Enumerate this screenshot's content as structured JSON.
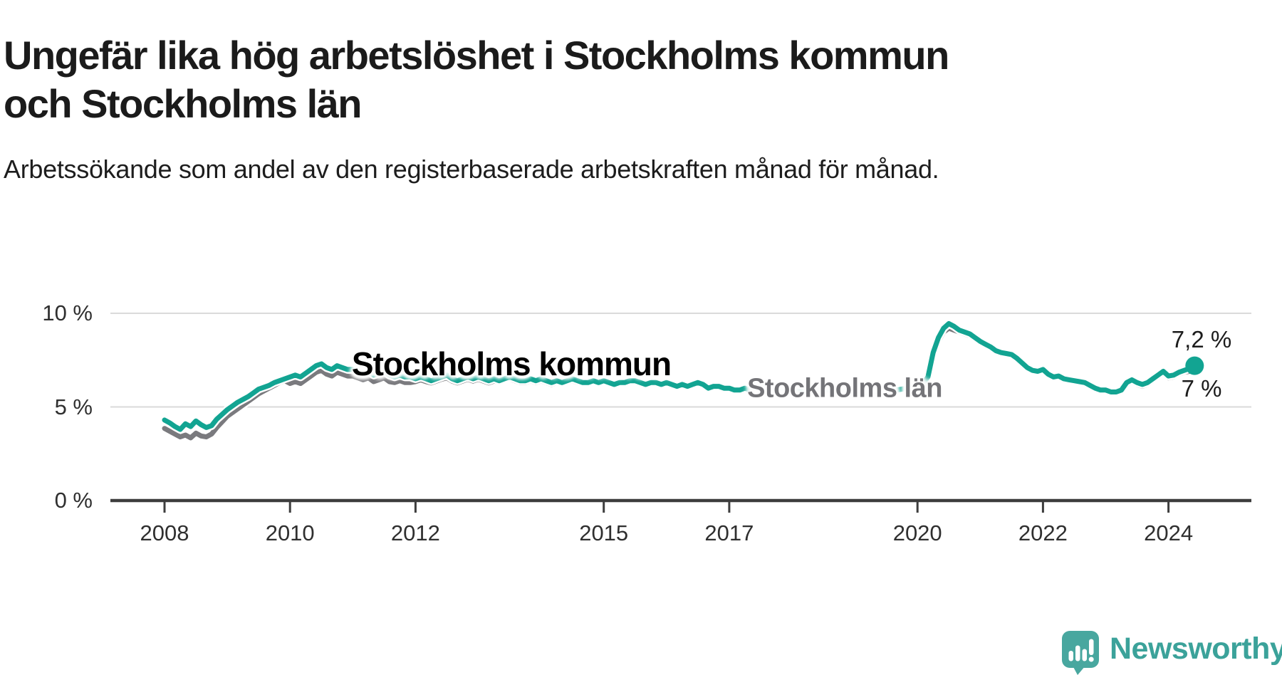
{
  "header": {
    "title_line1": "Ungefär lika hög arbetslöshet i Stockholms kommun",
    "title_line2": "och Stockholms län",
    "subtitle": "Arbetssökande som andel av den registerbaserade arbetskraften månad för månad."
  },
  "chart_data": {
    "type": "line",
    "title": "Ungefär lika hög arbetslöshet i Stockholms kommun och Stockholms län",
    "subtitle": "Arbetssökande som andel av den registerbaserade arbetskraften månad för månad.",
    "unit": "%",
    "frequency": "monthly",
    "x_start": "2008-01",
    "x_end": "2024-06",
    "ylim": [
      0,
      10.5
    ],
    "grid": "horizontal",
    "legend_position": "inline-labels",
    "y_ticks": [
      {
        "value": 10,
        "label": "10 %"
      },
      {
        "value": 5,
        "label": "5 %"
      },
      {
        "value": 0,
        "label": "0 %"
      }
    ],
    "x_ticks": [
      {
        "year": 2008,
        "label": "2008"
      },
      {
        "year": 2010,
        "label": "2010"
      },
      {
        "year": 2012,
        "label": "2012"
      },
      {
        "year": 2015,
        "label": "2015"
      },
      {
        "year": 2017,
        "label": "2017"
      },
      {
        "year": 2020,
        "label": "2020"
      },
      {
        "year": 2022,
        "label": "2022"
      },
      {
        "year": 2024,
        "label": "2024"
      }
    ],
    "series": [
      {
        "name": "Stockholms kommun",
        "color": "#12a492",
        "end_label": "7,2 %",
        "end_value": 7.2,
        "values": [
          4.3,
          4.15,
          3.95,
          3.8,
          4.1,
          3.95,
          4.25,
          4.05,
          3.9,
          4.0,
          4.35,
          4.6,
          4.85,
          5.05,
          5.25,
          5.4,
          5.55,
          5.75,
          5.95,
          6.05,
          6.15,
          6.3,
          6.4,
          6.5,
          6.6,
          6.7,
          6.6,
          6.8,
          7.0,
          7.2,
          7.3,
          7.1,
          7.0,
          7.2,
          7.1,
          7.0,
          7.0,
          6.9,
          6.8,
          6.9,
          6.7,
          6.8,
          6.9,
          6.7,
          6.6,
          6.7,
          6.6,
          6.6,
          6.5,
          6.6,
          6.5,
          6.4,
          6.5,
          6.6,
          6.7,
          6.5,
          6.4,
          6.5,
          6.6,
          6.5,
          6.6,
          6.5,
          6.4,
          6.5,
          6.4,
          6.5,
          6.6,
          6.5,
          6.4,
          6.4,
          6.5,
          6.4,
          6.5,
          6.4,
          6.3,
          6.4,
          6.3,
          6.4,
          6.5,
          6.4,
          6.3,
          6.3,
          6.4,
          6.3,
          6.4,
          6.3,
          6.2,
          6.3,
          6.3,
          6.4,
          6.4,
          6.3,
          6.2,
          6.3,
          6.3,
          6.2,
          6.3,
          6.2,
          6.1,
          6.2,
          6.1,
          6.2,
          6.3,
          6.2,
          6.0,
          6.1,
          6.1,
          6.0,
          6.0,
          5.9,
          5.9,
          6.0,
          5.9,
          6.0,
          6.1,
          6.0,
          5.9,
          5.9,
          6.0,
          5.9,
          5.9,
          5.85,
          5.8,
          5.85,
          5.8,
          5.9,
          5.95,
          5.9,
          5.8,
          5.8,
          5.85,
          5.8,
          5.85,
          5.8,
          5.75,
          5.8,
          5.8,
          5.9,
          6.0,
          5.95,
          5.9,
          5.95,
          6.0,
          6.05,
          6.1,
          6.2,
          6.6,
          7.9,
          8.7,
          9.2,
          9.45,
          9.3,
          9.1,
          9.0,
          8.9,
          8.7,
          8.5,
          8.35,
          8.2,
          8.0,
          7.9,
          7.85,
          7.8,
          7.6,
          7.35,
          7.1,
          6.95,
          6.9,
          7.0,
          6.75,
          6.6,
          6.65,
          6.5,
          6.45,
          6.4,
          6.35,
          6.3,
          6.15,
          6.0,
          5.9,
          5.9,
          5.8,
          5.8,
          5.9,
          6.3,
          6.45,
          6.3,
          6.2,
          6.3,
          6.5,
          6.7,
          6.9,
          6.65,
          6.7,
          6.85,
          6.95,
          7.05,
          7.2
        ]
      },
      {
        "name": "Stockholms län",
        "color": "#7a7a7e",
        "end_label": "7 %",
        "end_value": 7.0,
        "values": [
          3.85,
          3.7,
          3.55,
          3.4,
          3.5,
          3.35,
          3.6,
          3.45,
          3.4,
          3.55,
          3.9,
          4.2,
          4.5,
          4.7,
          4.9,
          5.1,
          5.3,
          5.5,
          5.7,
          5.85,
          6.0,
          6.15,
          6.3,
          6.4,
          6.25,
          6.35,
          6.25,
          6.45,
          6.65,
          6.85,
          6.95,
          6.75,
          6.65,
          6.85,
          6.75,
          6.65,
          6.65,
          6.55,
          6.45,
          6.55,
          6.35,
          6.45,
          6.55,
          6.35,
          6.3,
          6.4,
          6.3,
          6.3,
          6.35,
          6.45,
          6.35,
          6.28,
          6.38,
          6.48,
          6.55,
          6.38,
          6.28,
          6.38,
          6.48,
          6.38,
          6.48,
          6.38,
          6.28,
          6.38,
          6.33,
          6.43,
          6.5,
          6.4,
          6.3,
          6.3,
          6.4,
          6.3,
          6.4,
          6.3,
          6.2,
          6.3,
          6.22,
          6.32,
          6.4,
          6.3,
          6.22,
          6.22,
          6.32,
          6.22,
          6.32,
          6.22,
          6.12,
          6.22,
          6.22,
          6.32,
          6.32,
          6.22,
          6.12,
          6.22,
          6.22,
          6.12,
          6.22,
          6.12,
          6.02,
          6.12,
          6.02,
          6.12,
          6.22,
          6.12,
          5.92,
          6.02,
          6.02,
          5.92,
          5.92,
          5.82,
          5.82,
          5.92,
          5.82,
          5.92,
          6.02,
          5.92,
          5.82,
          5.82,
          5.92,
          5.82,
          5.82,
          5.78,
          5.72,
          5.78,
          5.72,
          5.82,
          5.88,
          5.82,
          5.72,
          5.72,
          5.78,
          5.72,
          5.78,
          5.72,
          5.68,
          5.72,
          5.72,
          5.82,
          5.92,
          5.88,
          5.82,
          5.88,
          5.92,
          5.98,
          6.02,
          6.12,
          6.5,
          7.7,
          8.5,
          9.0,
          9.2,
          9.1,
          9.0,
          8.9,
          8.8,
          8.65,
          8.55,
          8.4,
          8.25,
          8.05,
          7.95,
          7.9,
          7.85,
          7.65,
          7.4,
          7.15,
          7.0,
          6.95,
          7.05,
          6.8,
          6.65,
          6.7,
          6.55,
          6.5,
          6.45,
          6.4,
          6.33,
          6.18,
          6.05,
          5.92,
          5.85,
          5.75,
          5.75,
          5.85,
          6.2,
          6.35,
          6.2,
          6.1,
          6.2,
          6.4,
          6.6,
          6.8,
          6.55,
          6.6,
          6.75,
          6.85,
          6.9,
          7.0
        ]
      }
    ]
  },
  "branding": {
    "logo_text": "Newsworthy",
    "logo_icon": "bar-chart-speech-bubble-icon",
    "logo_color": "#48a79f",
    "logo_text_color": "#3ba29a"
  },
  "colors": {
    "kommun_line": "#12a492",
    "lan_line": "#7a7a7e",
    "gridline": "#dadada",
    "axis": "#3d3d3d",
    "text": "#1b1b1b"
  }
}
